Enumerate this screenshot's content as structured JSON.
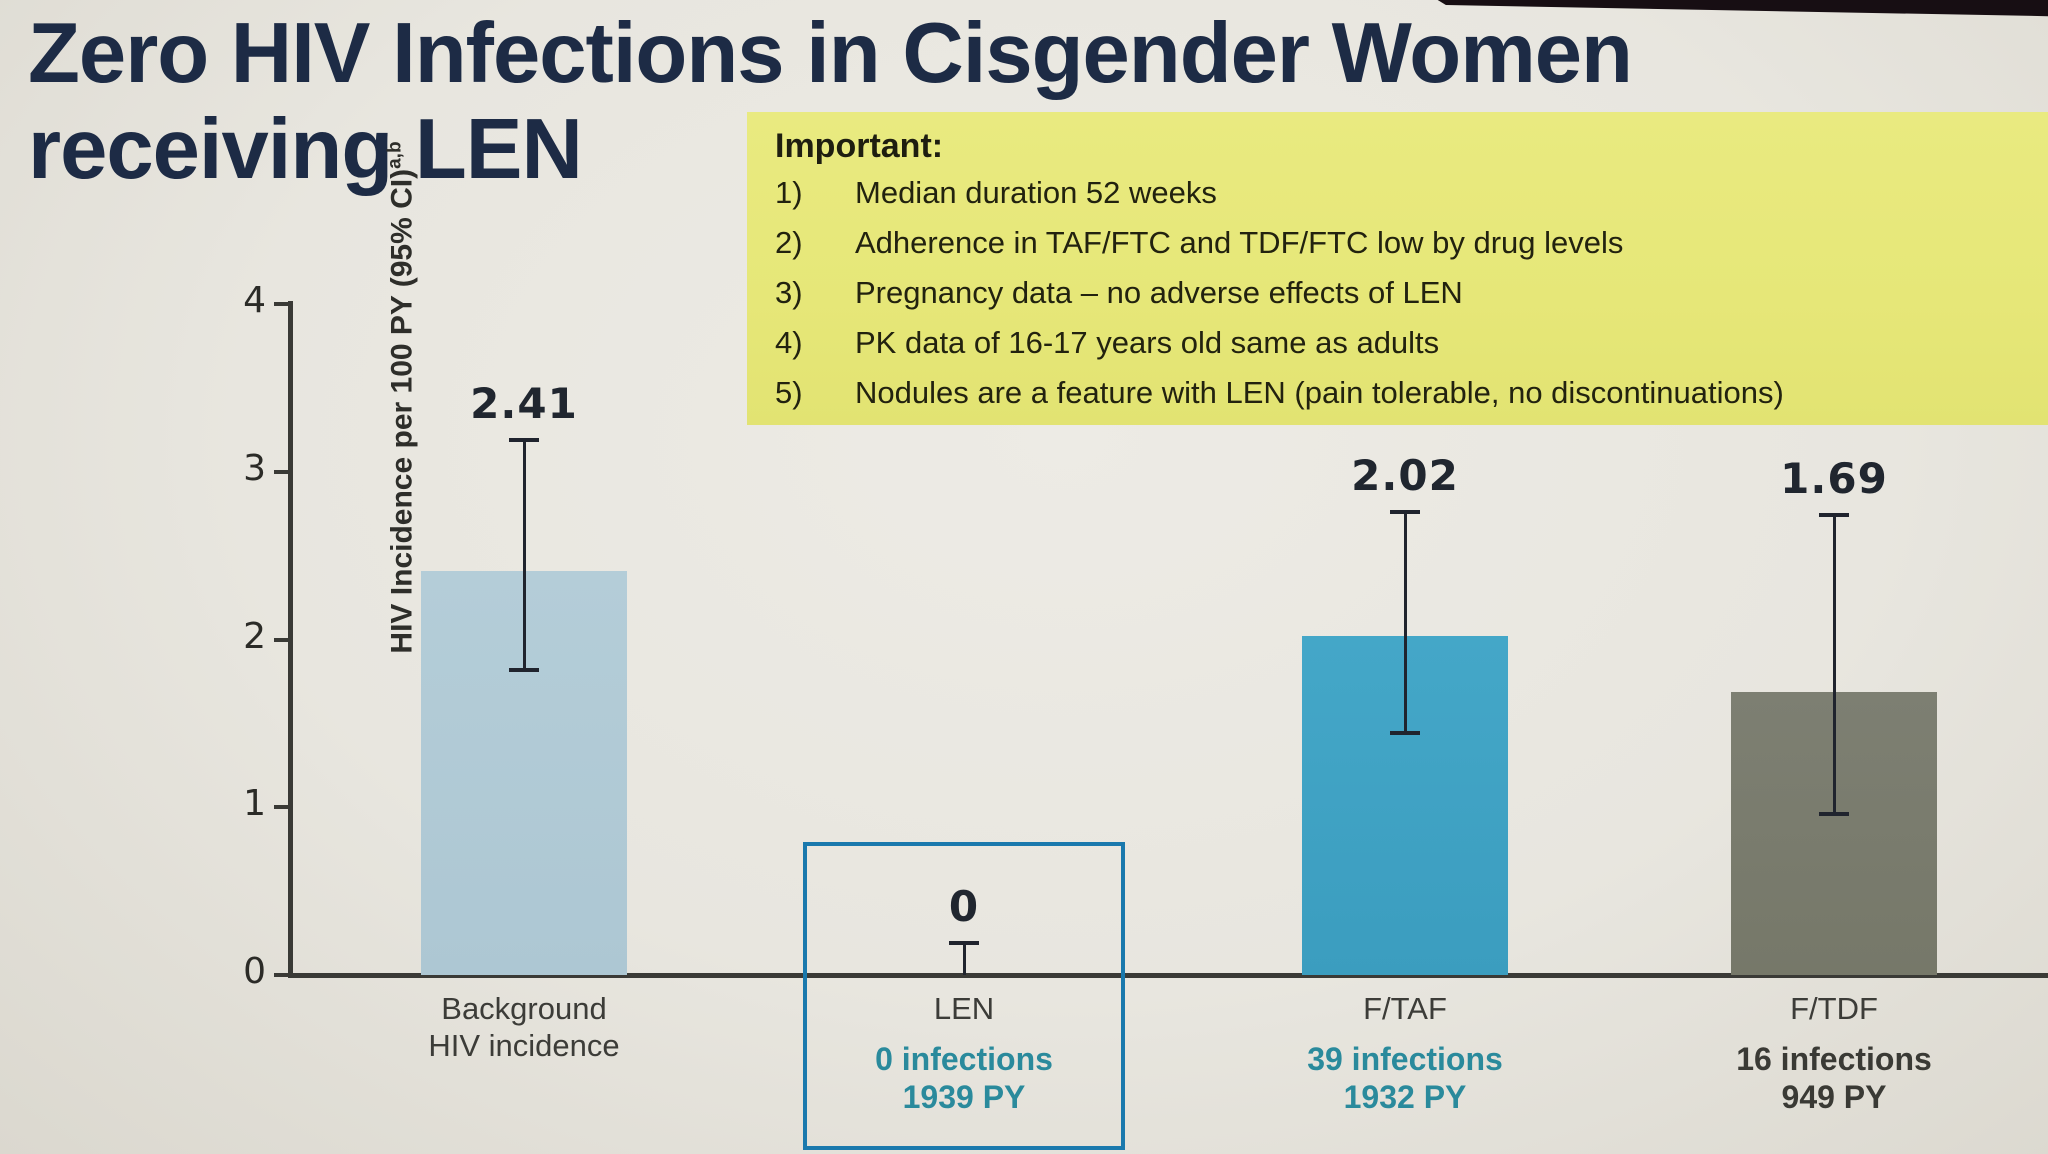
{
  "title": {
    "line1": "Zero HIV Infections in Cisgender Women",
    "line2": "receiving LEN"
  },
  "important_box": {
    "heading": "Important:",
    "items": [
      {
        "num": "1)",
        "text": "Median duration 52 weeks"
      },
      {
        "num": "2)",
        "text": "Adherence in TAF/FTC and TDF/FTC low by drug levels"
      },
      {
        "num": "3)",
        "text": "Pregnancy data – no adverse effects of LEN"
      },
      {
        "num": "4)",
        "text": "PK data of 16-17 years old same as adults"
      },
      {
        "num": "5)",
        "text": "Nodules are a feature with LEN (pain tolerable, no discontinuations)"
      }
    ]
  },
  "chart_data": {
    "type": "bar",
    "categories": [
      "Background HIV incidence",
      "LEN",
      "F/TAF",
      "F/TDF"
    ],
    "values": [
      2.41,
      0,
      2.02,
      1.69
    ],
    "ci_low": [
      1.82,
      0,
      1.44,
      0.96
    ],
    "ci_high": [
      3.19,
      0.19,
      2.76,
      2.74
    ],
    "value_labels": [
      "2.41",
      "0",
      "2.02",
      "1.69"
    ],
    "annotations": [
      "",
      "0 infections 1939 PY",
      "39 infections 1932 PY",
      "16 infections 949 PY"
    ],
    "ylabel": "HIV Incidence per 100 PY (95% CI)",
    "ylabel_superscript": "a,b",
    "ylim": [
      0,
      4
    ],
    "yticks": [
      0,
      1,
      2,
      3,
      4
    ],
    "grid": false,
    "legend": false
  },
  "bars": [
    {
      "id": "background",
      "value": 2.41,
      "ci_low": 1.82,
      "ci_high": 3.19,
      "value_label": "2.41",
      "label_lines": [
        "Background",
        "HIV incidence"
      ],
      "sublabel_lines": [],
      "color": "#b4cdd8",
      "color_bottom": "#adc7d3",
      "sublabel_color": "#2a8a9c"
    },
    {
      "id": "len",
      "value": 0,
      "ci_low": 0,
      "ci_high": 0.19,
      "value_label": "0",
      "label_lines": [
        "LEN"
      ],
      "sublabel_lines": [
        "0 infections",
        "1939 PY"
      ],
      "color": "",
      "color_bottom": "",
      "sublabel_color": "#2a8a9c"
    },
    {
      "id": "ftaf",
      "value": 2.02,
      "ci_low": 1.44,
      "ci_high": 2.76,
      "value_label": "2.02",
      "label_lines": [
        "F/TAF"
      ],
      "sublabel_lines": [
        "39 infections",
        "1932 PY"
      ],
      "color": "#44a7c8",
      "color_bottom": "#3b9dbf",
      "sublabel_color": "#2a8a9c"
    },
    {
      "id": "ftdf",
      "value": 1.69,
      "ci_low": 0.96,
      "ci_high": 2.74,
      "value_label": "1.69",
      "label_lines": [
        "F/TDF"
      ],
      "sublabel_lines": [
        "16 infections",
        "949 PY"
      ],
      "color": "#7d7f72",
      "color_bottom": "#767869",
      "sublabel_color": "#3a3a35"
    }
  ],
  "colors": {
    "title": "#1d2b45",
    "important_bg": "#e8e97c",
    "highlight_border": "#1a79ad",
    "teal_text": "#2a8a9c",
    "axis": "#3a3a36",
    "background_bar": "#b4cdd8",
    "ftaf_bar": "#44a7c8",
    "ftdf_bar": "#7d7f72"
  }
}
